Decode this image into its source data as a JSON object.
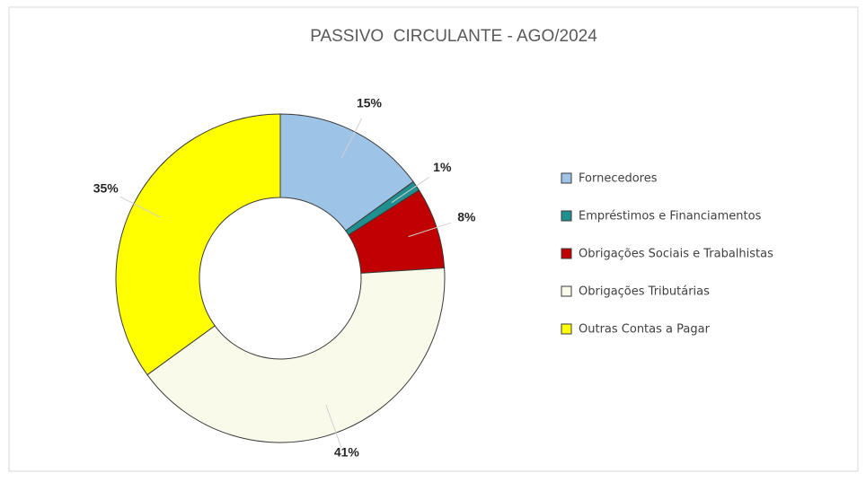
{
  "chart_data": {
    "type": "donut",
    "title": "PASSIVO  CIRCULANTE - AGO/2024",
    "categories": [
      "Fornecedores",
      "Empréstimos e Financiamentos",
      "Obrigações Sociais e Trabalhistas",
      "Obrigações Tributárias",
      "Outras Contas a Pagar"
    ],
    "values": [
      15,
      1,
      8,
      41,
      35
    ],
    "value_labels": [
      "15%",
      "1%",
      "8%",
      "41%",
      "35%"
    ],
    "colors": [
      "#9dc3e6",
      "#1f8f8f",
      "#c00000",
      "#fafaea",
      "#ffff00"
    ],
    "legend": "right"
  }
}
